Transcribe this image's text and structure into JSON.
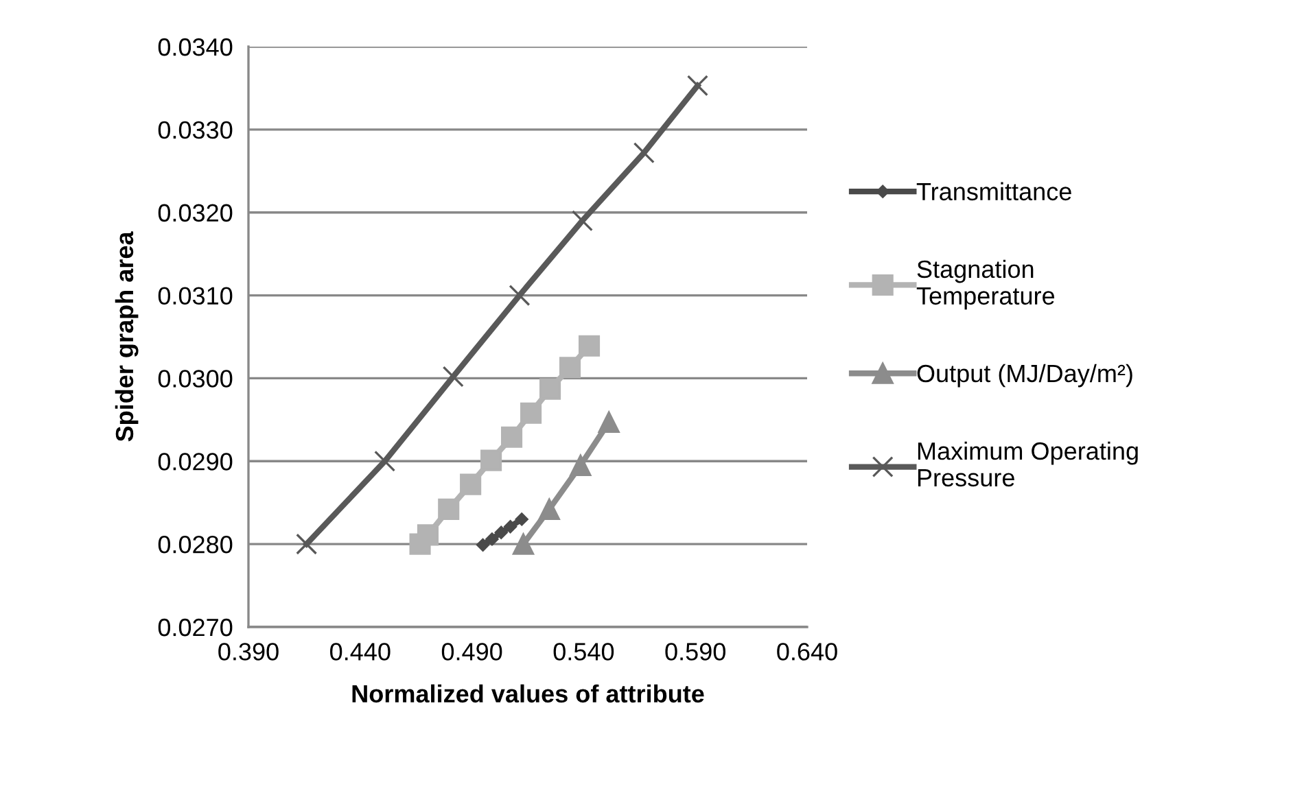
{
  "chart_data": {
    "type": "line",
    "xlabel": "Normalized values of attribute",
    "ylabel": "Spider graph area",
    "xlim": [
      0.39,
      0.64
    ],
    "xticks": [
      {
        "value": 0.39,
        "label": "0.390"
      },
      {
        "value": 0.44,
        "label": "0.440"
      },
      {
        "value": 0.49,
        "label": "0.490"
      },
      {
        "value": 0.54,
        "label": "0.540"
      },
      {
        "value": 0.59,
        "label": "0.590"
      },
      {
        "value": 0.64,
        "label": "0.640"
      }
    ],
    "ylim": [
      0.027,
      0.034
    ],
    "yticks": [
      {
        "value": 0.027,
        "label": "0.0270"
      },
      {
        "value": 0.028,
        "label": "0.0280"
      },
      {
        "value": 0.029,
        "label": "0.0290"
      },
      {
        "value": 0.03,
        "label": "0.0300"
      },
      {
        "value": 0.031,
        "label": "0.0310"
      },
      {
        "value": 0.032,
        "label": "0.0320"
      },
      {
        "value": 0.033,
        "label": "0.0330"
      },
      {
        "value": 0.034,
        "label": "0.0340"
      }
    ],
    "grid": "y",
    "legend": "right",
    "series": [
      {
        "name": "Transmittance",
        "color": "#4a4a4a",
        "marker": "diamond",
        "x": [
          0.4949,
          0.499,
          0.5031,
          0.5072,
          0.5123
        ],
        "values": [
          0.02799,
          0.02806,
          0.02814,
          0.02821,
          0.0283
        ]
      },
      {
        "name": "Stagnation\nTemperature",
        "color": "#b3b3b3",
        "marker": "square",
        "x": [
          0.4668,
          0.4703,
          0.4796,
          0.4894,
          0.4986,
          0.5078,
          0.5164,
          0.525,
          0.5339,
          0.5425
        ],
        "values": [
          0.028,
          0.02811,
          0.02842,
          0.02872,
          0.02901,
          0.02929,
          0.02958,
          0.02987,
          0.03013,
          0.03039
        ]
      },
      {
        "name": "Output (MJ/Day/m²)",
        "color": "#8c8c8c",
        "marker": "triangle",
        "x": [
          0.513,
          0.5246,
          0.5386,
          0.5513
        ],
        "values": [
          0.028,
          0.02842,
          0.02895,
          0.02947
        ]
      },
      {
        "name": "Maximum Operating\nPressure",
        "color": "#595959",
        "marker": "cross",
        "x": [
          0.416,
          0.451,
          0.4816,
          0.5113,
          0.5394,
          0.567,
          0.591
        ],
        "values": [
          0.028,
          0.029,
          0.03002,
          0.031,
          0.0319,
          0.03272,
          0.03353
        ]
      }
    ]
  }
}
